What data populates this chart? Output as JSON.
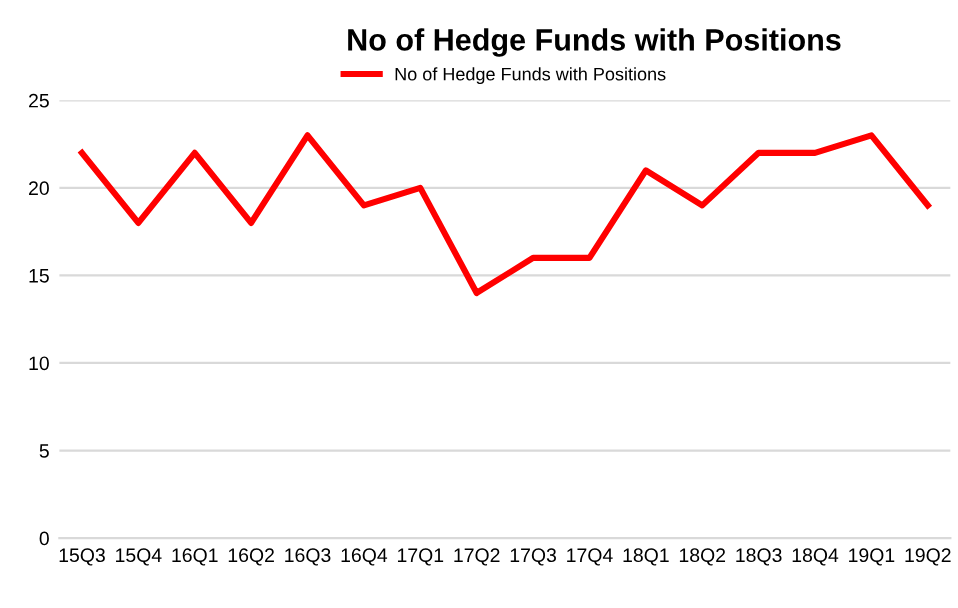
{
  "chart_data": {
    "type": "line",
    "title": "No of Hedge Funds with Positions",
    "categories": [
      "15Q3",
      "15Q4",
      "16Q1",
      "16Q2",
      "16Q3",
      "16Q4",
      "17Q1",
      "17Q2",
      "17Q3",
      "17Q4",
      "18Q1",
      "18Q2",
      "18Q3",
      "18Q4",
      "19Q1",
      "19Q2"
    ],
    "series": [
      {
        "name": "No of Hedge Funds with Positions",
        "color": "#ff0000",
        "values": [
          22,
          18,
          22,
          18,
          23,
          19,
          20,
          14,
          16,
          16,
          21,
          19,
          22,
          22,
          23,
          19
        ]
      }
    ],
    "ylim": [
      0,
      25
    ],
    "yticks": [
      0,
      5,
      10,
      15,
      20,
      25
    ],
    "grid": "y",
    "legend": "top",
    "marker": "none",
    "line_style": "solid"
  }
}
